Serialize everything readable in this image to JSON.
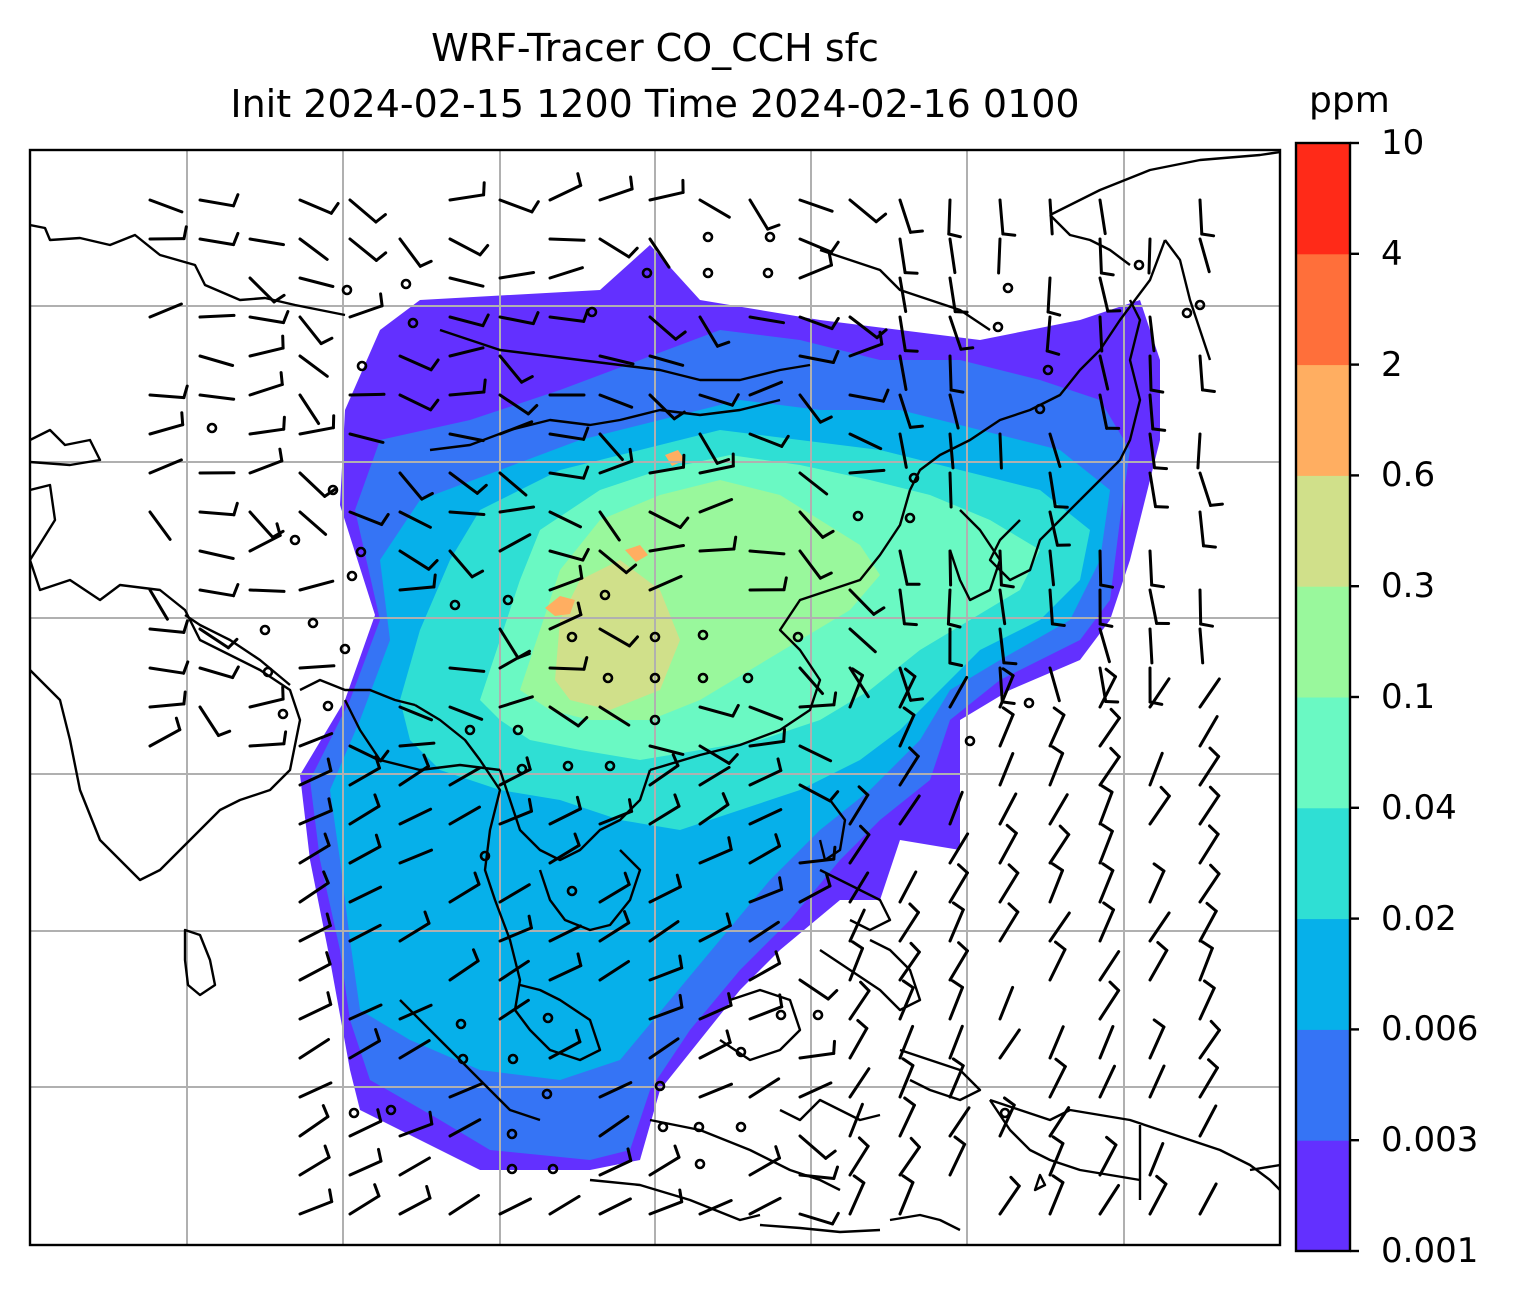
{
  "title": {
    "line1": "WRF-Tracer CO_CCH sfc",
    "line2": "Init 2024-02-15 1200 Time 2024-02-16 0100"
  },
  "colorbar": {
    "unit": "ppm",
    "ticks": [
      "0.001",
      "0.003",
      "0.006",
      "0.02",
      "0.04",
      "0.1",
      "0.3",
      "0.6",
      "2",
      "4",
      "10"
    ],
    "colors": [
      "#6330ff",
      "#3574f5",
      "#06b0ea",
      "#2fdfd4",
      "#6af9c3",
      "#99f89c",
      "#d0e08a",
      "#ffae61",
      "#ff6f3a",
      "#ff2a18"
    ]
  },
  "map": {
    "gridlines": true,
    "field": "CO_CCH surface concentration",
    "overlay": "wind barbs"
  }
}
